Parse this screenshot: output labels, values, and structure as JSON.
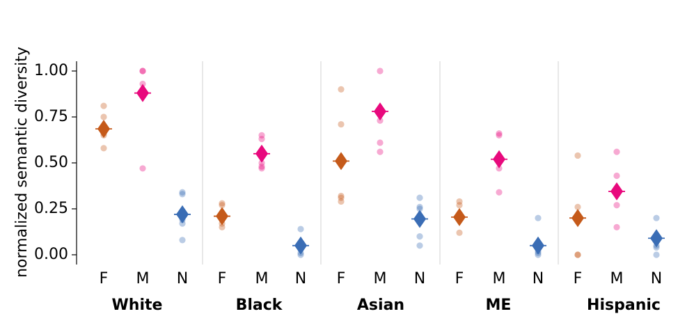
{
  "chart_data": {
    "type": "scatter",
    "title": "",
    "xlabel": "",
    "ylabel": "normalized semantic diversity",
    "ylim": [
      -0.04,
      1.05
    ],
    "yticks": [
      "0.00",
      "0.25",
      "0.50",
      "0.75",
      "1.00"
    ],
    "grid": false,
    "legend": "none",
    "colors": {
      "F": "#c55a1a",
      "M": "#e8097d",
      "N": "#3a6db5"
    },
    "groups": [
      {
        "name": "White",
        "categories": [
          {
            "label": "F",
            "points": [
              0.81,
              0.75,
              0.7,
              0.66,
              0.65,
              0.58
            ],
            "mean": 0.685
          },
          {
            "label": "M",
            "points": [
              1.0,
              1.0,
              0.93,
              0.89,
              0.47
            ],
            "mean": 0.88
          },
          {
            "label": "N",
            "points": [
              0.34,
              0.33,
              0.22,
              0.19,
              0.17,
              0.08
            ],
            "mean": 0.22
          }
        ]
      },
      {
        "name": "Black",
        "categories": [
          {
            "label": "F",
            "points": [
              0.28,
              0.27,
              0.22,
              0.19,
              0.17,
              0.15
            ],
            "mean": 0.21
          },
          {
            "label": "M",
            "points": [
              0.65,
              0.63,
              0.55,
              0.5,
              0.48,
              0.47
            ],
            "mean": 0.55
          },
          {
            "label": "N",
            "points": [
              0.14,
              0.05,
              0.03,
              0.01,
              0.0
            ],
            "mean": 0.05
          }
        ]
      },
      {
        "name": "Asian",
        "categories": [
          {
            "label": "F",
            "points": [
              0.9,
              0.71,
              0.51,
              0.32,
              0.31,
              0.29
            ],
            "mean": 0.51
          },
          {
            "label": "M",
            "points": [
              1.0,
              0.78,
              0.73,
              0.61,
              0.56
            ],
            "mean": 0.78
          },
          {
            "label": "N",
            "points": [
              0.31,
              0.26,
              0.25,
              0.19,
              0.1,
              0.05
            ],
            "mean": 0.195
          }
        ]
      },
      {
        "name": "ME",
        "categories": [
          {
            "label": "F",
            "points": [
              0.29,
              0.27,
              0.21,
              0.19,
              0.12
            ],
            "mean": 0.205
          },
          {
            "label": "M",
            "points": [
              0.66,
              0.65,
              0.52,
              0.47,
              0.34
            ],
            "mean": 0.52
          },
          {
            "label": "N",
            "points": [
              0.2,
              0.05,
              0.02,
              0.01,
              0.0
            ],
            "mean": 0.05
          }
        ]
      },
      {
        "name": "Hispanic",
        "categories": [
          {
            "label": "F",
            "points": [
              0.54,
              0.26,
              0.2,
              0.18,
              0.0,
              0.0
            ],
            "mean": 0.2
          },
          {
            "label": "M",
            "points": [
              0.56,
              0.43,
              0.35,
              0.27,
              0.15
            ],
            "mean": 0.345
          },
          {
            "label": "N",
            "points": [
              0.2,
              0.09,
              0.05,
              0.04,
              0.0
            ],
            "mean": 0.09
          }
        ]
      }
    ]
  }
}
